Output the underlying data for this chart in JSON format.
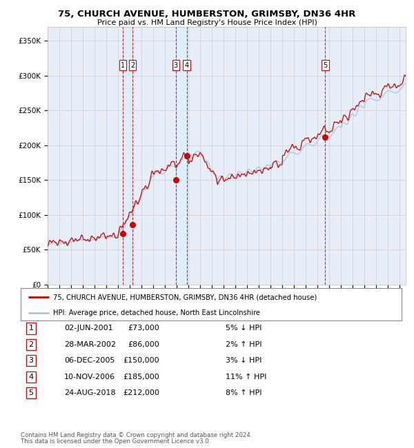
{
  "title": "75, CHURCH AVENUE, HUMBERSTON, GRIMSBY, DN36 4HR",
  "subtitle": "Price paid vs. HM Land Registry's House Price Index (HPI)",
  "legend_line1": "75, CHURCH AVENUE, HUMBERSTON, GRIMSBY, DN36 4HR (detached house)",
  "legend_line2": "HPI: Average price, detached house, North East Lincolnshire",
  "footer1": "Contains HM Land Registry data © Crown copyright and database right 2024.",
  "footer2": "This data is licensed under the Open Government Licence v3.0.",
  "transactions": [
    {
      "id": 1,
      "date": "02-JUN-2001",
      "price": 73000,
      "hpi_rel": "5% ↓ HPI",
      "year": 2001.42
    },
    {
      "id": 2,
      "date": "28-MAR-2002",
      "price": 86000,
      "hpi_rel": "2% ↑ HPI",
      "year": 2002.23
    },
    {
      "id": 3,
      "date": "06-DEC-2005",
      "price": 150000,
      "hpi_rel": "3% ↓ HPI",
      "year": 2005.92
    },
    {
      "id": 4,
      "date": "10-NOV-2006",
      "price": 185000,
      "hpi_rel": "11% ↑ HPI",
      "year": 2006.85
    },
    {
      "id": 5,
      "date": "24-AUG-2018",
      "price": 212000,
      "hpi_rel": "8% ↑ HPI",
      "year": 2018.64
    }
  ],
  "hpi_color": "#aac4e0",
  "price_color": "#cc0000",
  "dot_color": "#cc0000",
  "vline_color": "#cc0000",
  "shade_color": "#ddeeff",
  "grid_color": "#cccccc",
  "bg_color": "#ffffff",
  "plot_bg_color": "#e8eef8",
  "ylim": [
    0,
    370000
  ],
  "yticks": [
    0,
    50000,
    100000,
    150000,
    200000,
    250000,
    300000,
    350000
  ],
  "ytick_labels": [
    "£0",
    "£50K",
    "£100K",
    "£150K",
    "£200K",
    "£250K",
    "£300K",
    "£350K"
  ],
  "xstart": 1995,
  "xend": 2025.5
}
